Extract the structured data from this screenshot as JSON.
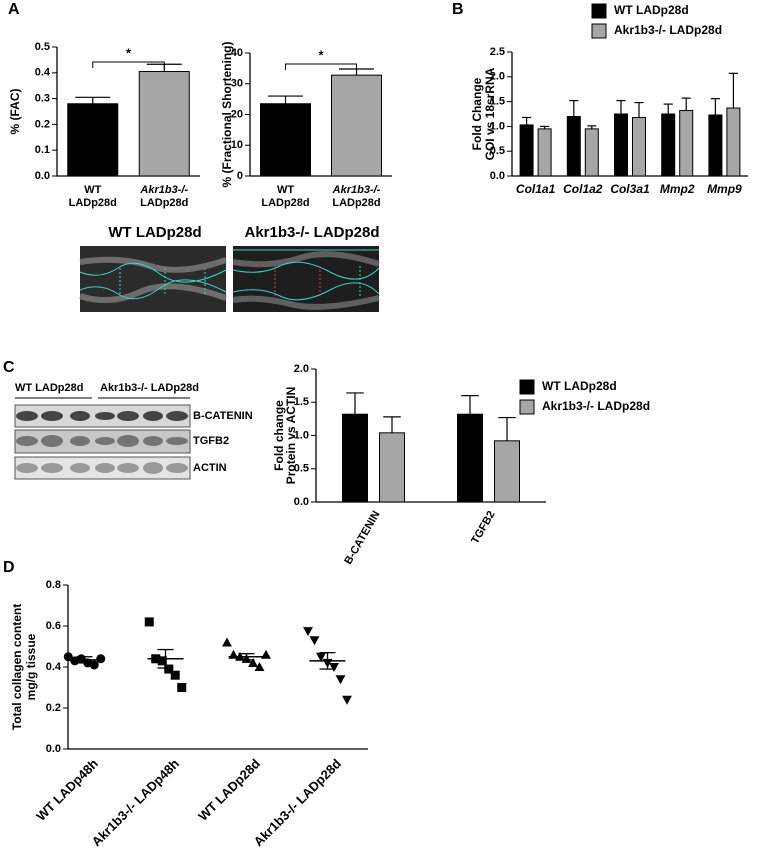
{
  "panels": [
    "A",
    "B",
    "C",
    "D"
  ],
  "echo": {
    "labels": [
      "WT LADp28d",
      "Akr1b3-/- LADp28d"
    ]
  },
  "blot": {
    "groups": [
      "WT LADp28d",
      "Akr1b3-/- LADp28d"
    ],
    "bands": [
      "B-CATENIN",
      "TGFB2",
      "ACTIN"
    ]
  },
  "chart_data": [
    {
      "type": "bar",
      "y_label": "% (FAC)",
      "categories": [
        [
          "WT",
          "LADp28d"
        ],
        [
          "Akr1b3-/-",
          "LADp28d"
        ]
      ],
      "values": [
        0.28,
        0.405
      ],
      "errors": [
        0.025,
        0.028
      ],
      "colors": [
        "#000000",
        "#a6a6a6"
      ],
      "ylim": [
        0,
        0.5
      ],
      "yticks": [
        {
          "value": 0,
          "label": "0.0"
        },
        0.1,
        0.2,
        0.3,
        0.4,
        0.5
      ],
      "annotation": "*"
    },
    {
      "type": "bar",
      "y_label": "% (Fractional Shortening)",
      "categories": [
        [
          "WT",
          "LADp28d"
        ],
        [
          "Akr1b3-/-",
          "LADp28d"
        ]
      ],
      "values": [
        23.5,
        32.8
      ],
      "errors": [
        2.5,
        2.0
      ],
      "colors": [
        "#000000",
        "#a6a6a6"
      ],
      "ylim": [
        0,
        40
      ],
      "yticks": [
        0,
        10,
        20,
        30,
        40
      ],
      "annotation": "*"
    },
    {
      "type": "bar",
      "y_label": [
        "Fold Change",
        "GOI vs 18srRNA"
      ],
      "categories": [
        "Col1a1",
        "Col1a2",
        "Col3a1",
        "Mmp2",
        "Mmp9"
      ],
      "series": [
        {
          "name": "WT LADp28d",
          "color": "#000000",
          "values": [
            1.03,
            1.2,
            1.25,
            1.25,
            1.23
          ],
          "errors": [
            0.15,
            0.32,
            0.27,
            0.2,
            0.33
          ]
        },
        {
          "name": "Akr1b3-/- LADp28d",
          "color": "#a6a6a6",
          "values": [
            0.95,
            0.95,
            1.18,
            1.32,
            1.37
          ],
          "errors": [
            0.05,
            0.06,
            0.3,
            0.25,
            0.7
          ]
        }
      ],
      "ylim": [
        0,
        2.5
      ],
      "yticks": [
        {
          "value": 0,
          "label": "0.0"
        },
        0.5,
        {
          "value": 1,
          "label": "1.0"
        },
        1.5,
        {
          "value": 2,
          "label": "2.0"
        },
        2.5
      ]
    },
    {
      "type": "bar",
      "y_label": [
        "Fold change",
        "Protein vs ACTIN"
      ],
      "categories": [
        "B-CATENIN",
        "TGFB2"
      ],
      "series": [
        {
          "name": "WT LADp28d",
          "color": "#000000",
          "values": [
            1.32,
            1.32
          ],
          "errors": [
            0.32,
            0.28
          ]
        },
        {
          "name": "Akr1b3-/- LADp28d",
          "color": "#a6a6a6",
          "values": [
            1.04,
            0.92
          ],
          "errors": [
            0.24,
            0.35
          ]
        }
      ],
      "ylim": [
        0,
        2
      ],
      "yticks": [
        {
          "value": 0,
          "label": "0.0"
        },
        0.5,
        {
          "value": 1,
          "label": "1.0"
        },
        1.5,
        {
          "value": 2,
          "label": "2.0"
        }
      ]
    },
    {
      "type": "dot",
      "y_label": [
        "Total collagen content",
        "mg/g tissue"
      ],
      "categories": [
        "WT LADp48h",
        "Akr1b3-/- LADp48h",
        "WT LADp28d",
        "Akr1b3-/- LADp28d"
      ],
      "points": [
        [
          0.45,
          0.43,
          0.44,
          0.42,
          0.41,
          0.44
        ],
        [
          0.62,
          0.44,
          0.43,
          0.39,
          0.36,
          0.3
        ],
        [
          0.52,
          0.46,
          0.45,
          0.44,
          0.42,
          0.4,
          0.46
        ],
        [
          0.575,
          0.53,
          0.45,
          0.42,
          0.4,
          0.34,
          0.24
        ]
      ],
      "means": [
        0.435,
        0.44,
        0.45,
        0.43
      ],
      "errors": [
        0.015,
        0.045,
        0.015,
        0.04
      ],
      "markers": [
        "circle",
        "square",
        "triangle",
        "triangle-down"
      ],
      "color": "#000000",
      "ylim": [
        0,
        0.8
      ],
      "yticks": [
        {
          "value": 0,
          "label": "0.0"
        },
        0.2,
        0.4,
        0.6,
        0.8
      ]
    }
  ]
}
